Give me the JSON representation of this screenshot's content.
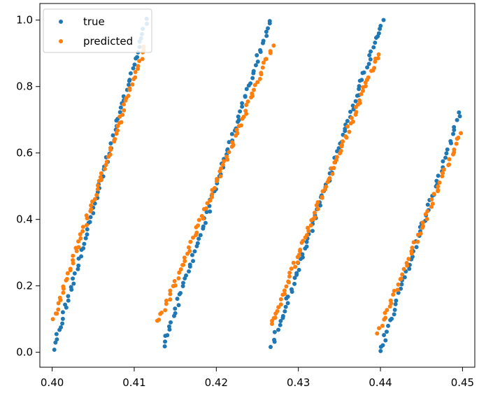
{
  "chart_data": {
    "type": "scatter",
    "title": "",
    "xlabel": "",
    "ylabel": "",
    "xlim": [
      0.3985,
      0.4515
    ],
    "ylim": [
      -0.045,
      1.05
    ],
    "grid": false,
    "legend_position": "top-left",
    "x_ticks": [
      "0.40",
      "0.41",
      "0.42",
      "0.43",
      "0.44",
      "0.45"
    ],
    "x_tick_values": [
      0.4,
      0.41,
      0.42,
      0.43,
      0.44,
      0.45
    ],
    "y_ticks": [
      "0.0",
      "0.2",
      "0.4",
      "0.6",
      "0.8",
      "1.0"
    ],
    "y_tick_values": [
      0.0,
      0.2,
      0.4,
      0.6,
      0.8,
      1.0
    ],
    "series": [
      {
        "name": "true",
        "color": "#1f77b4",
        "segments": [
          {
            "x": [
              0.4002,
              0.4115
            ],
            "y": [
              0.01,
              1.0
            ],
            "count": 75
          },
          {
            "x": [
              0.4136,
              0.4266
            ],
            "y": [
              0.02,
              1.0
            ],
            "count": 80
          },
          {
            "x": [
              0.4268,
              0.4402
            ],
            "y": [
              0.02,
              1.0
            ],
            "count": 85
          },
          {
            "x": [
              0.4399,
              0.4497
            ],
            "y": [
              0.0,
              0.72
            ],
            "count": 55
          }
        ]
      },
      {
        "name": "predicted",
        "color": "#ff7f0e",
        "segments": [
          {
            "x": [
              0.4001,
              0.4113
            ],
            "y": [
              0.1,
              0.92
            ],
            "count": 75
          },
          {
            "x": [
              0.413,
              0.4268
            ],
            "y": [
              0.09,
              0.92
            ],
            "count": 80
          },
          {
            "x": [
              0.4266,
              0.4398
            ],
            "y": [
              0.08,
              0.9
            ],
            "count": 85
          },
          {
            "x": [
              0.4397,
              0.4498
            ],
            "y": [
              0.06,
              0.66
            ],
            "count": 55
          }
        ]
      }
    ]
  }
}
